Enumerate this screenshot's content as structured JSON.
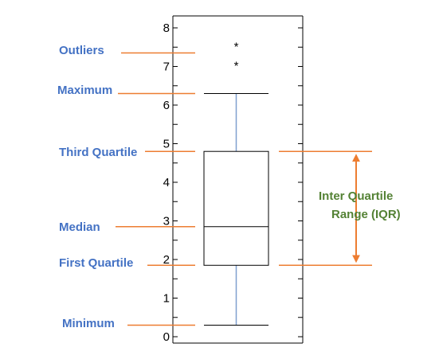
{
  "chart_data": {
    "type": "box",
    "y_ticks": [
      "0",
      "1",
      "2",
      "3",
      "4",
      "5",
      "6",
      "7",
      "8"
    ],
    "ylim": [
      0,
      8.2
    ],
    "box": {
      "min": 0.3,
      "q1": 1.85,
      "median": 2.85,
      "q3": 4.8,
      "max": 6.3
    },
    "outliers": [
      7.6,
      7.1
    ],
    "outlier_marker": "*",
    "colors": {
      "label": "#4472c4",
      "guide": "#ed7d31",
      "iqr": "#548235",
      "whisker": "#7f9fcf"
    }
  },
  "labels": {
    "outliers": "Outliers",
    "maximum": "Maximum",
    "third_quartile": "Third Quartile",
    "median": "Median",
    "first_quartile": "First Quartile",
    "minimum": "Minimum",
    "iqr_line1": "Inter Quartile",
    "iqr_line2": "Range (IQR)"
  }
}
